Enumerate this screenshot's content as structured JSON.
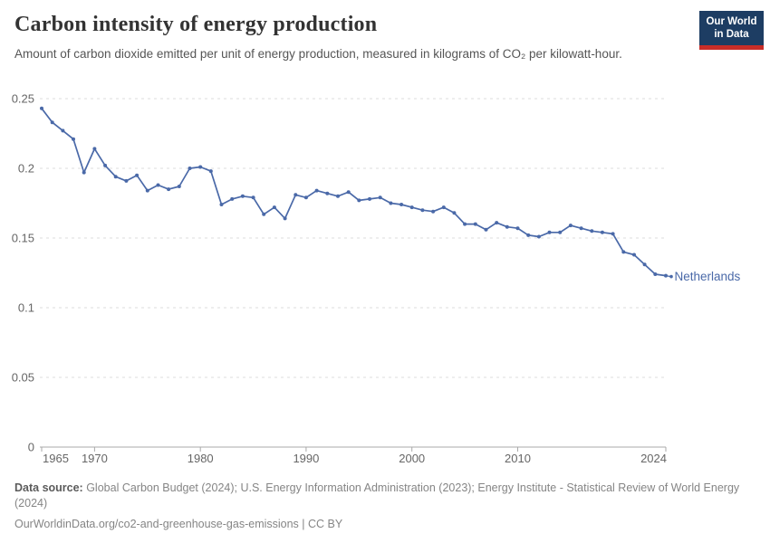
{
  "header": {
    "title": "Carbon intensity of energy production",
    "subtitle": "Amount of carbon dioxide emitted per unit of energy production, measured in kilograms of CO₂ per kilowatt-hour.",
    "logo": {
      "line1": "Our World",
      "line2": "in Data",
      "bg_color": "#1d3d63",
      "bar_color": "#c82d28"
    }
  },
  "chart_data": {
    "type": "line",
    "title": "Carbon intensity of energy production",
    "subtitle": "Amount of carbon dioxide emitted per unit of energy production, measured in kilograms of CO₂ per kilowatt-hour.",
    "xlabel": "",
    "ylabel": "kilograms of CO₂ per kilowatt-hour",
    "xlim": [
      1965,
      2024
    ],
    "ylim": [
      0,
      0.25
    ],
    "grid": "horizontal-dashed",
    "legend_position": "end-of-line",
    "y_ticks": [
      0,
      0.05,
      0.1,
      0.15,
      0.2,
      0.25
    ],
    "y_tick_labels": [
      "0",
      "0.05",
      "0.1",
      "0.15",
      "0.2",
      "0.25"
    ],
    "x_tick_years": [
      1965,
      1970,
      1980,
      1990,
      2000,
      2010,
      2024
    ],
    "x_tick_labels": [
      "1965",
      "1970",
      "1980",
      "1990",
      "2000",
      "2010",
      "2024"
    ],
    "x": [
      1965,
      1966,
      1967,
      1968,
      1969,
      1970,
      1971,
      1972,
      1973,
      1974,
      1975,
      1976,
      1977,
      1978,
      1979,
      1980,
      1981,
      1982,
      1983,
      1984,
      1985,
      1986,
      1987,
      1988,
      1989,
      1990,
      1991,
      1992,
      1993,
      1994,
      1995,
      1996,
      1997,
      1998,
      1999,
      2000,
      2001,
      2002,
      2003,
      2004,
      2005,
      2006,
      2007,
      2008,
      2009,
      2010,
      2011,
      2012,
      2013,
      2014,
      2015,
      2016,
      2017,
      2018,
      2019,
      2020,
      2021,
      2022,
      2023,
      2024
    ],
    "series": [
      {
        "name": "Netherlands",
        "color": "#4a69a8",
        "values": [
          0.243,
          0.233,
          0.227,
          0.221,
          0.197,
          0.214,
          0.202,
          0.194,
          0.191,
          0.195,
          0.184,
          0.188,
          0.185,
          0.187,
          0.2,
          0.201,
          0.198,
          0.174,
          0.178,
          0.18,
          0.179,
          0.167,
          0.172,
          0.164,
          0.181,
          0.179,
          0.184,
          0.182,
          0.18,
          0.183,
          0.177,
          0.178,
          0.179,
          0.175,
          0.174,
          0.172,
          0.17,
          0.169,
          0.172,
          0.168,
          0.16,
          0.16,
          0.156,
          0.161,
          0.158,
          0.157,
          0.152,
          0.151,
          0.154,
          0.154,
          0.159,
          0.157,
          0.155,
          0.154,
          0.153,
          0.14,
          0.138,
          0.131,
          0.124,
          0.123
        ]
      }
    ],
    "colors": {
      "gridline": "#dddddd",
      "axis": "#a9a9a9",
      "tick_label": "#666666"
    }
  },
  "footer": {
    "source_label": "Data source:",
    "source_text": " Global Carbon Budget (2024); U.S. Energy Information Administration (2023); Energy Institute - Statistical Review of World Energy (2024)",
    "link_text": "OurWorldinData.org/co2-and-greenhouse-gas-emissions | CC BY"
  }
}
